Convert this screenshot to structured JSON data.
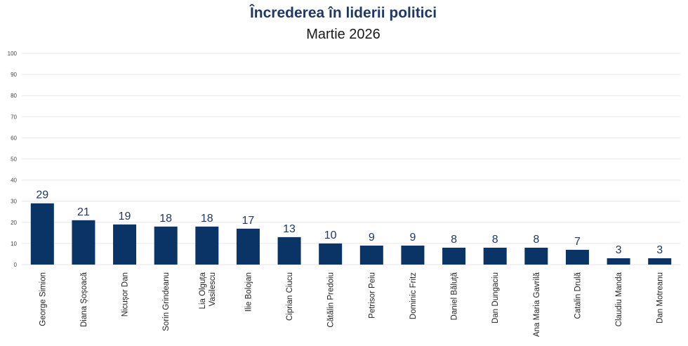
{
  "chart_data": {
    "type": "bar",
    "title": "Încrederea în liderii politici",
    "subtitle": "Martie 2026",
    "xlabel": "",
    "ylabel": "",
    "ylim": [
      0,
      100
    ],
    "yticks": [
      0,
      10,
      20,
      30,
      40,
      50,
      60,
      70,
      80,
      90,
      100
    ],
    "grid": true,
    "legend": "none",
    "bar_color": "#0b3466",
    "categories": [
      "George Simion",
      "Diana Șoșoacă",
      "Nicușor Dan",
      "Sorin Grindeanu",
      "Lia Olguța\nVasilescu",
      "Ilie Bolojan",
      "Ciprian Ciucu",
      "Cătălin Predoiu",
      "Petrisor Peiu",
      "Dominic Fritz",
      "Daniel Băluță",
      "Dan Dungaciu",
      "Ana Maria Gavrilă",
      "Catalin Drulă",
      "Claudiu Manda",
      "Dan Motreanu"
    ],
    "values": [
      29,
      21,
      19,
      18,
      18,
      17,
      13,
      10,
      9,
      9,
      8,
      8,
      8,
      7,
      3,
      3
    ]
  }
}
